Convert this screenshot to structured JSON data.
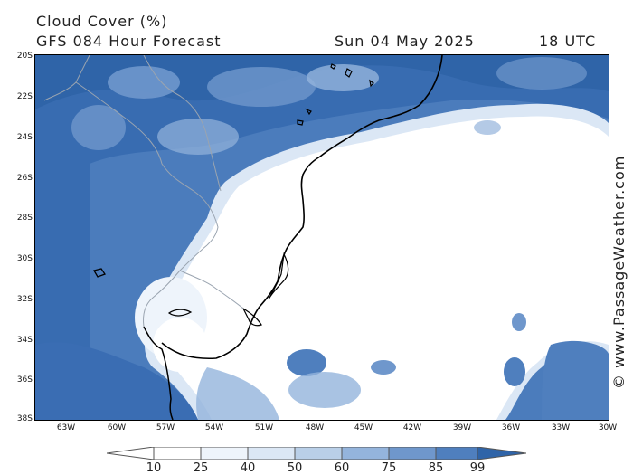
{
  "title": {
    "line1": "Cloud Cover (%)",
    "line2": "GFS 084 Hour Forecast",
    "date": "Sun 04 May 2025",
    "time": "18 UTC"
  },
  "credit": "© www.PassageWeather.com",
  "latitude_labels": [
    "20S",
    "22S",
    "24S",
    "26S",
    "28S",
    "30S",
    "32S",
    "34S",
    "36S",
    "38S"
  ],
  "longitude_labels": [
    "63W",
    "60W",
    "57W",
    "54W",
    "51W",
    "48W",
    "45W",
    "42W",
    "39W",
    "36W",
    "33W",
    "30W"
  ],
  "colorbar": {
    "labels": [
      "10",
      "25",
      "40",
      "50",
      "60",
      "75",
      "85",
      "99"
    ],
    "colors": [
      "#ffffff",
      "#eef4fb",
      "#dbe7f5",
      "#b9cfe8",
      "#94b4dc",
      "#6f97cc",
      "#4f7fbe",
      "#3a6db3",
      "#2f64a8"
    ]
  }
}
